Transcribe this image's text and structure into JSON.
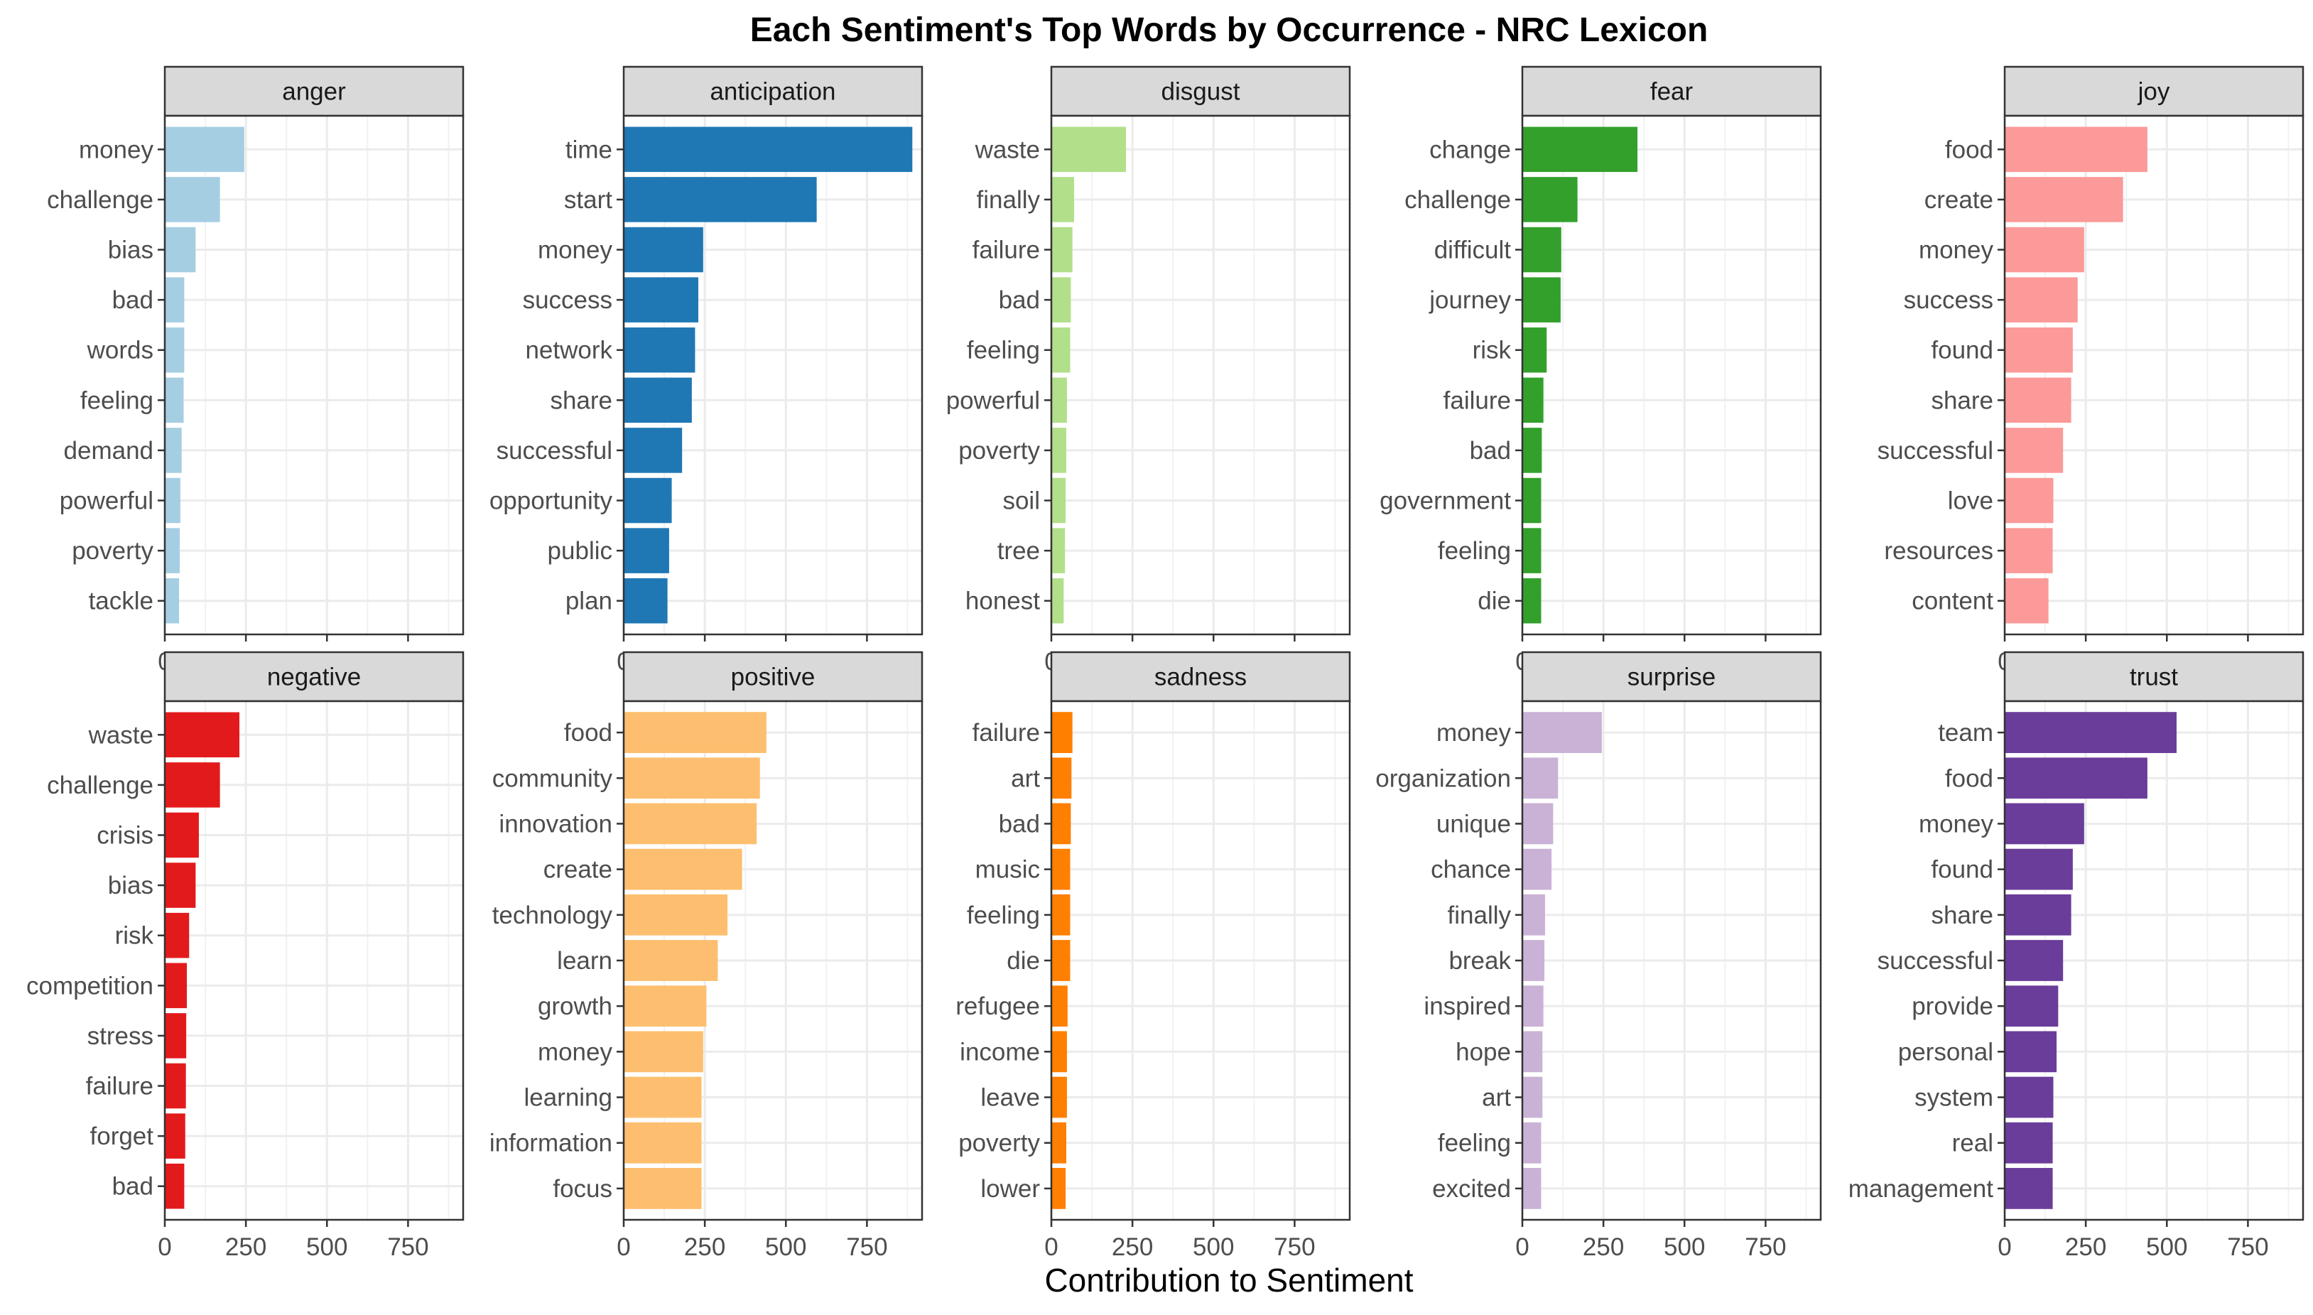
{
  "chart_data": {
    "type": "bar",
    "orientation": "horizontal",
    "title": "Each Sentiment's Top Words by Occurrence - NRC Lexicon",
    "xlabel": "Contribution to Sentiment",
    "ylabel": "",
    "xlim": [
      0,
      920
    ],
    "xticks": [
      0,
      250,
      500,
      750
    ],
    "grid": true,
    "facets": [
      {
        "name": "anger",
        "color": "#A6CEE3",
        "categories": [
          "money",
          "challenge",
          "bias",
          "bad",
          "words",
          "feeling",
          "demand",
          "powerful",
          "poverty",
          "tackle"
        ],
        "values": [
          245,
          170,
          95,
          60,
          60,
          58,
          52,
          48,
          46,
          44
        ]
      },
      {
        "name": "anticipation",
        "color": "#1F78B4",
        "categories": [
          "time",
          "start",
          "money",
          "success",
          "network",
          "share",
          "successful",
          "opportunity",
          "public",
          "plan"
        ],
        "values": [
          890,
          595,
          245,
          230,
          220,
          210,
          180,
          148,
          140,
          135
        ]
      },
      {
        "name": "disgust",
        "color": "#B2DF8A",
        "categories": [
          "waste",
          "finally",
          "failure",
          "bad",
          "feeling",
          "powerful",
          "poverty",
          "soil",
          "tree",
          "honest"
        ],
        "values": [
          230,
          70,
          65,
          60,
          58,
          48,
          46,
          44,
          42,
          38
        ]
      },
      {
        "name": "fear",
        "color": "#33A02C",
        "categories": [
          "change",
          "challenge",
          "difficult",
          "journey",
          "risk",
          "failure",
          "bad",
          "government",
          "feeling",
          "die"
        ],
        "values": [
          355,
          170,
          120,
          118,
          75,
          65,
          60,
          58,
          58,
          58
        ]
      },
      {
        "name": "joy",
        "color": "#FB9A99",
        "categories": [
          "food",
          "create",
          "money",
          "success",
          "found",
          "share",
          "successful",
          "love",
          "resources",
          "content"
        ],
        "values": [
          440,
          365,
          245,
          225,
          210,
          205,
          180,
          150,
          148,
          135
        ]
      },
      {
        "name": "negative",
        "color": "#E31A1C",
        "categories": [
          "waste",
          "challenge",
          "crisis",
          "bias",
          "risk",
          "competition",
          "stress",
          "failure",
          "forget",
          "bad"
        ],
        "values": [
          230,
          170,
          105,
          95,
          75,
          68,
          66,
          65,
          63,
          60
        ]
      },
      {
        "name": "positive",
        "color": "#FDBF6F",
        "categories": [
          "food",
          "community",
          "innovation",
          "create",
          "technology",
          "learn",
          "growth",
          "money",
          "learning",
          "information",
          "focus"
        ],
        "values": [
          440,
          420,
          410,
          365,
          320,
          290,
          255,
          245,
          240,
          240,
          240
        ]
      },
      {
        "name": "sadness",
        "color": "#FF7F00",
        "categories": [
          "failure",
          "art",
          "bad",
          "music",
          "feeling",
          "die",
          "refugee",
          "income",
          "leave",
          "poverty",
          "lower"
        ],
        "values": [
          65,
          62,
          60,
          58,
          58,
          58,
          50,
          48,
          48,
          46,
          44
        ]
      },
      {
        "name": "surprise",
        "color": "#CAB2D6",
        "categories": [
          "money",
          "organization",
          "unique",
          "chance",
          "finally",
          "break",
          "inspired",
          "hope",
          "art",
          "feeling",
          "excited"
        ],
        "values": [
          245,
          110,
          95,
          90,
          70,
          68,
          65,
          62,
          62,
          58,
          58
        ]
      },
      {
        "name": "trust",
        "color": "#6A3D9A",
        "categories": [
          "team",
          "food",
          "money",
          "found",
          "share",
          "successful",
          "provide",
          "personal",
          "system",
          "real",
          "management"
        ],
        "values": [
          530,
          440,
          245,
          210,
          205,
          180,
          165,
          160,
          150,
          148,
          148
        ]
      }
    ]
  }
}
